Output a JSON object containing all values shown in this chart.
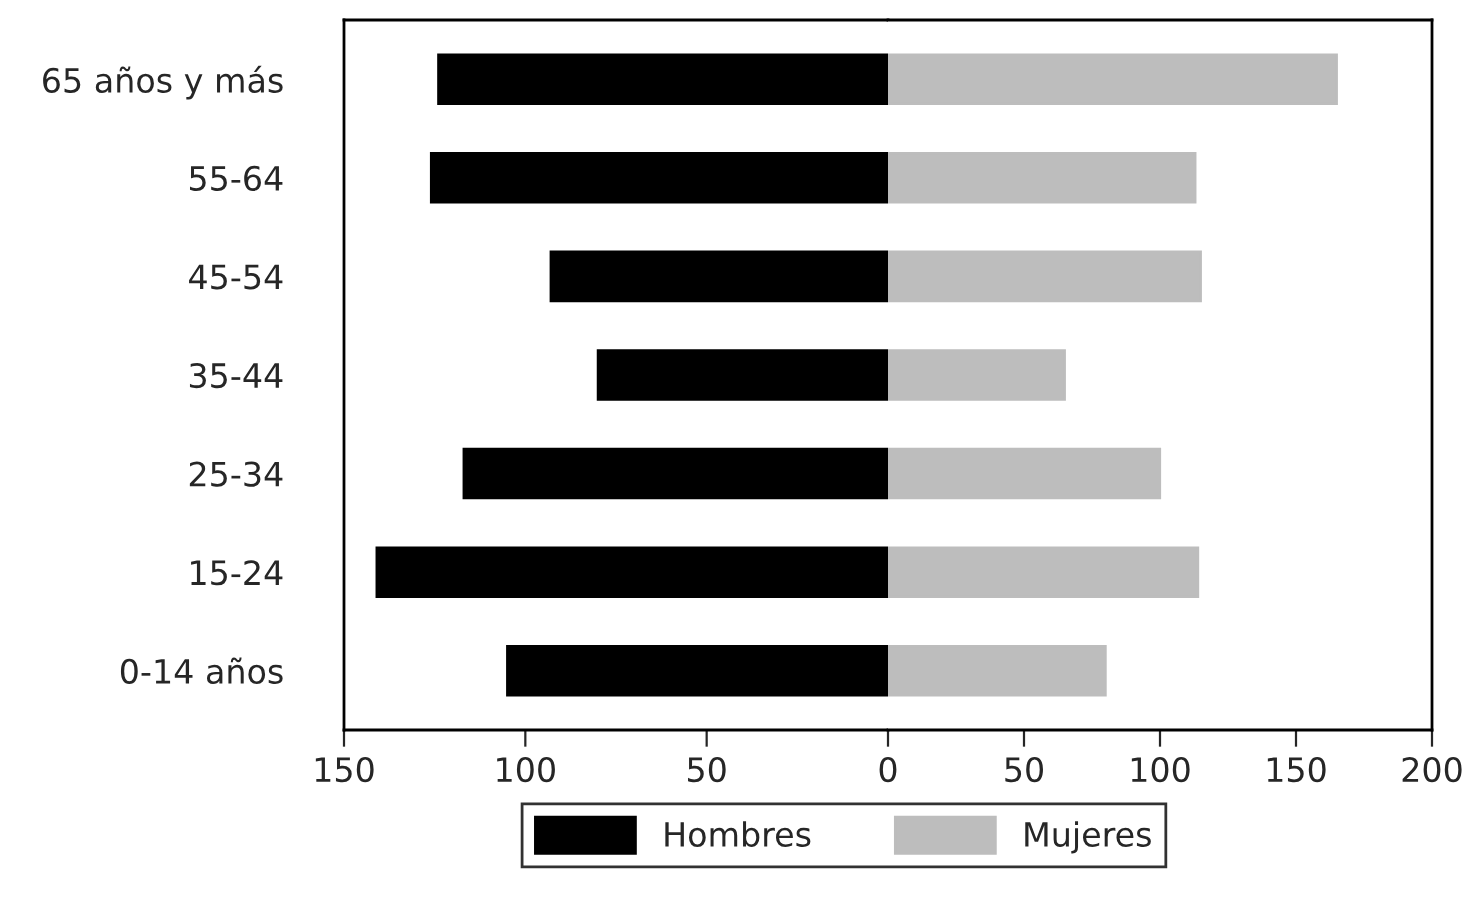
{
  "chart_data": [
    {
      "type": "bar",
      "orientation": "horizontal",
      "categories": [
        "65 años y más",
        "55-64",
        "45-54",
        "35-44",
        "25-34",
        "15-24",
        "0-14 años"
      ],
      "xlim": [
        150,
        0
      ],
      "xticks": [
        150,
        100,
        50
      ],
      "grid": false,
      "legend": "bottom",
      "series": [
        {
          "name": "Hombres",
          "color": "#000000",
          "values": [
            124,
            126,
            93,
            80,
            117,
            141,
            105
          ]
        }
      ]
    },
    {
      "type": "bar",
      "orientation": "horizontal",
      "xlim": [
        0,
        200
      ],
      "xticks": [
        0,
        50,
        100,
        150,
        200
      ],
      "grid": false,
      "legend": "bottom",
      "tick_labels": "x",
      "series": [
        {
          "name": "Mujeres",
          "color": "#bdbdbd",
          "values": [
            165,
            113,
            115,
            65,
            100,
            114,
            80
          ]
        }
      ]
    }
  ]
}
